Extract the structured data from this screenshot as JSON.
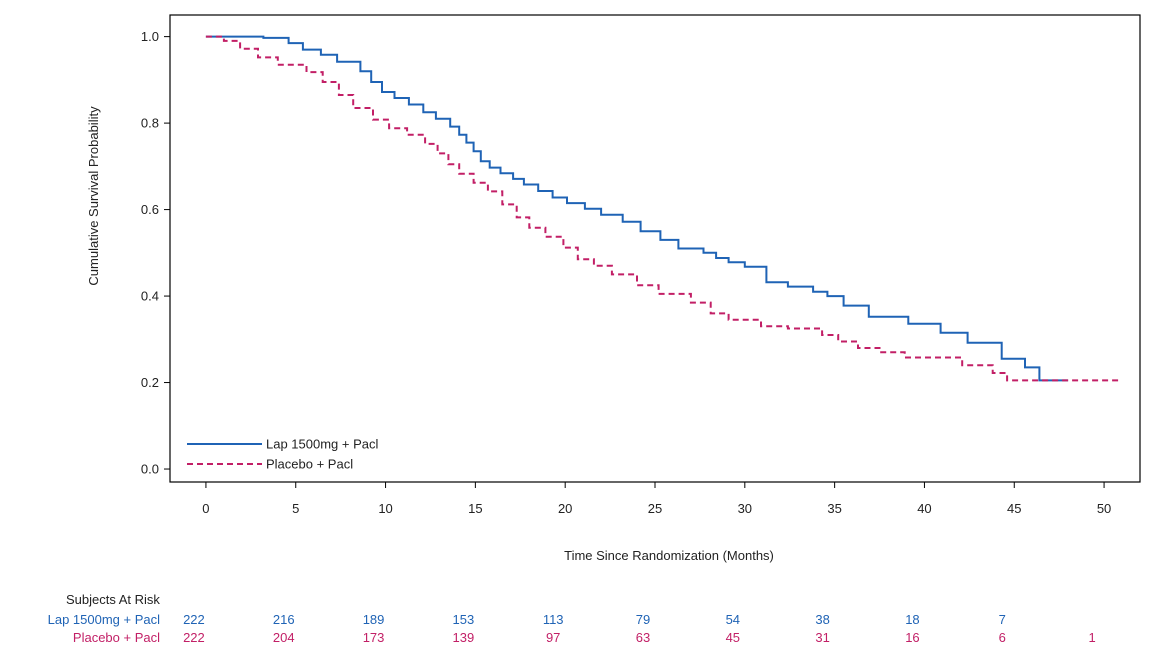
{
  "chart_data": {
    "type": "line",
    "step": true,
    "xlabel": "Time Since Randomization (Months)",
    "ylabel": "Cumulative Survival Probability",
    "xlim": [
      -2,
      52
    ],
    "ylim": [
      -0.03,
      1.05
    ],
    "xticks": [
      0,
      5,
      10,
      15,
      20,
      25,
      30,
      35,
      40,
      45,
      50
    ],
    "yticks": [
      0.0,
      0.2,
      0.4,
      0.6,
      0.8,
      1.0
    ],
    "ytick_labels": [
      "0.0",
      "0.2",
      "0.4",
      "0.6",
      "0.8",
      "1.0"
    ],
    "legend_position": "bottom-left",
    "grid": false,
    "series": [
      {
        "name": "Lap 1500mg + Pacl",
        "color": "#1f63b5",
        "dash": "solid",
        "x": [
          0,
          3.2,
          4.6,
          5.4,
          6.4,
          7.3,
          8.6,
          9.2,
          9.8,
          10.5,
          11.3,
          12.1,
          12.8,
          13.6,
          14.1,
          14.5,
          14.9,
          15.3,
          15.8,
          16.4,
          17.1,
          17.7,
          18.5,
          19.3,
          20.1,
          21.1,
          22.0,
          23.2,
          24.2,
          25.3,
          26.3,
          27.7,
          28.4,
          29.1,
          30.0,
          31.2,
          32.4,
          33.8,
          34.6,
          35.5,
          36.9,
          39.1,
          40.9,
          42.4,
          44.3,
          45.6,
          46.4,
          48.0
        ],
        "y": [
          1.0,
          0.997,
          0.985,
          0.97,
          0.958,
          0.942,
          0.92,
          0.895,
          0.872,
          0.858,
          0.843,
          0.825,
          0.81,
          0.792,
          0.773,
          0.755,
          0.735,
          0.712,
          0.697,
          0.684,
          0.671,
          0.658,
          0.643,
          0.628,
          0.615,
          0.602,
          0.588,
          0.572,
          0.55,
          0.53,
          0.51,
          0.5,
          0.488,
          0.478,
          0.468,
          0.432,
          0.422,
          0.41,
          0.4,
          0.378,
          0.352,
          0.336,
          0.315,
          0.292,
          0.255,
          0.235,
          0.205,
          0.205
        ]
      },
      {
        "name": "Placebo + Pacl",
        "color": "#c21f66",
        "dash": "dashed",
        "x": [
          0,
          1.0,
          1.9,
          2.9,
          4.0,
          5.6,
          6.5,
          7.4,
          8.2,
          9.3,
          10.2,
          11.2,
          12.2,
          12.9,
          13.5,
          14.1,
          14.9,
          15.7,
          16.5,
          17.3,
          18.0,
          18.9,
          19.9,
          20.7,
          21.6,
          22.6,
          24.0,
          25.2,
          27.0,
          28.1,
          29.1,
          30.9,
          32.4,
          34.3,
          35.2,
          36.3,
          37.5,
          38.9,
          42.1,
          43.8,
          44.6,
          50.8
        ],
        "y": [
          1.0,
          0.99,
          0.972,
          0.952,
          0.935,
          0.918,
          0.895,
          0.865,
          0.835,
          0.808,
          0.788,
          0.773,
          0.752,
          0.73,
          0.705,
          0.683,
          0.662,
          0.642,
          0.612,
          0.582,
          0.558,
          0.537,
          0.512,
          0.485,
          0.47,
          0.45,
          0.425,
          0.405,
          0.385,
          0.36,
          0.345,
          0.33,
          0.325,
          0.31,
          0.295,
          0.28,
          0.27,
          0.258,
          0.24,
          0.222,
          0.205,
          0.205
        ]
      }
    ]
  },
  "risk_table": {
    "title": "Subjects At Risk",
    "times": [
      0,
      5,
      10,
      15,
      20,
      25,
      30,
      35,
      40,
      45,
      50
    ],
    "rows": [
      {
        "label": "Lap 1500mg + Pacl",
        "color": "#1f63b5",
        "values": [
          "222",
          "216",
          "189",
          "153",
          "113",
          "79",
          "54",
          "38",
          "18",
          "7",
          ""
        ]
      },
      {
        "label": "Placebo + Pacl",
        "color": "#c21f66",
        "values": [
          "222",
          "204",
          "173",
          "139",
          "97",
          "63",
          "45",
          "31",
          "16",
          "6",
          "1"
        ]
      }
    ]
  }
}
